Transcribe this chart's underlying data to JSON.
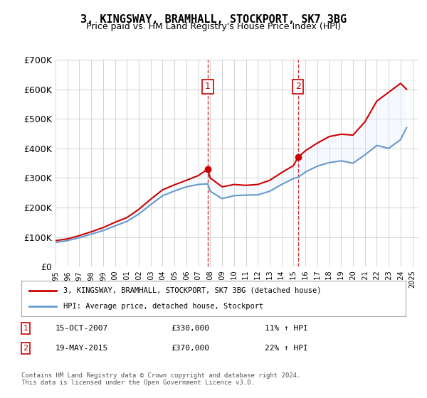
{
  "title": "3, KINGSWAY, BRAMHALL, STOCKPORT, SK7 3BG",
  "subtitle": "Price paid vs. HM Land Registry's House Price Index (HPI)",
  "ylabel": "",
  "xlabel": "",
  "ylim": [
    0,
    700000
  ],
  "yticks": [
    0,
    100000,
    200000,
    300000,
    400000,
    500000,
    600000,
    700000
  ],
  "ytick_labels": [
    "£0",
    "£100K",
    "£200K",
    "£300K",
    "£400K",
    "£500K",
    "£600K",
    "£700K"
  ],
  "xlim_start": 1995.0,
  "xlim_end": 2025.5,
  "sale1_x": 2007.79,
  "sale1_y": 330000,
  "sale1_label": "1",
  "sale1_date": "15-OCT-2007",
  "sale1_price": "£330,000",
  "sale1_hpi": "11% ↑ HPI",
  "sale2_x": 2015.38,
  "sale2_y": 370000,
  "sale2_label": "2",
  "sale2_date": "19-MAY-2015",
  "sale2_price": "£370,000",
  "sale2_hpi": "22% ↑ HPI",
  "legend_line1": "3, KINGSWAY, BRAMHALL, STOCKPORT, SK7 3BG (detached house)",
  "legend_line2": "HPI: Average price, detached house, Stockport",
  "footer": "Contains HM Land Registry data © Crown copyright and database right 2024.\nThis data is licensed under the Open Government Licence v3.0.",
  "line_color_red": "#cc0000",
  "line_color_blue": "#6699cc",
  "shaded_color": "#ddeeff",
  "marker_box_color": "#cc0000",
  "background_color": "#ffffff",
  "hpi_years": [
    1995,
    1996,
    1997,
    1998,
    1999,
    2000,
    2001,
    2002,
    2003,
    2004,
    2005,
    2006,
    2007,
    2007.79,
    2008,
    2009,
    2010,
    2011,
    2012,
    2013,
    2014,
    2015,
    2015.38,
    2016,
    2017,
    2018,
    2019,
    2020,
    2021,
    2022,
    2023,
    2024,
    2024.5
  ],
  "hpi_values": [
    82000,
    88000,
    98000,
    110000,
    122000,
    138000,
    153000,
    178000,
    210000,
    240000,
    256000,
    270000,
    278000,
    280000,
    255000,
    230000,
    240000,
    242000,
    243000,
    255000,
    278000,
    298000,
    302000,
    320000,
    340000,
    352000,
    358000,
    350000,
    378000,
    410000,
    400000,
    430000,
    470000
  ],
  "prop_years": [
    1995,
    1996,
    1997,
    1998,
    1999,
    2000,
    2001,
    2002,
    2003,
    2004,
    2005,
    2006,
    2007,
    2007.79,
    2008,
    2009,
    2010,
    2011,
    2012,
    2013,
    2014,
    2015,
    2015.38,
    2016,
    2017,
    2018,
    2019,
    2020,
    2021,
    2022,
    2023,
    2024,
    2024.5
  ],
  "prop_values": [
    88000,
    94000,
    105000,
    118000,
    132000,
    150000,
    166000,
    194000,
    228000,
    260000,
    277000,
    292000,
    308000,
    330000,
    300000,
    270000,
    278000,
    275000,
    278000,
    292000,
    318000,
    342000,
    370000,
    392000,
    418000,
    440000,
    448000,
    445000,
    490000,
    560000,
    590000,
    620000,
    600000
  ]
}
